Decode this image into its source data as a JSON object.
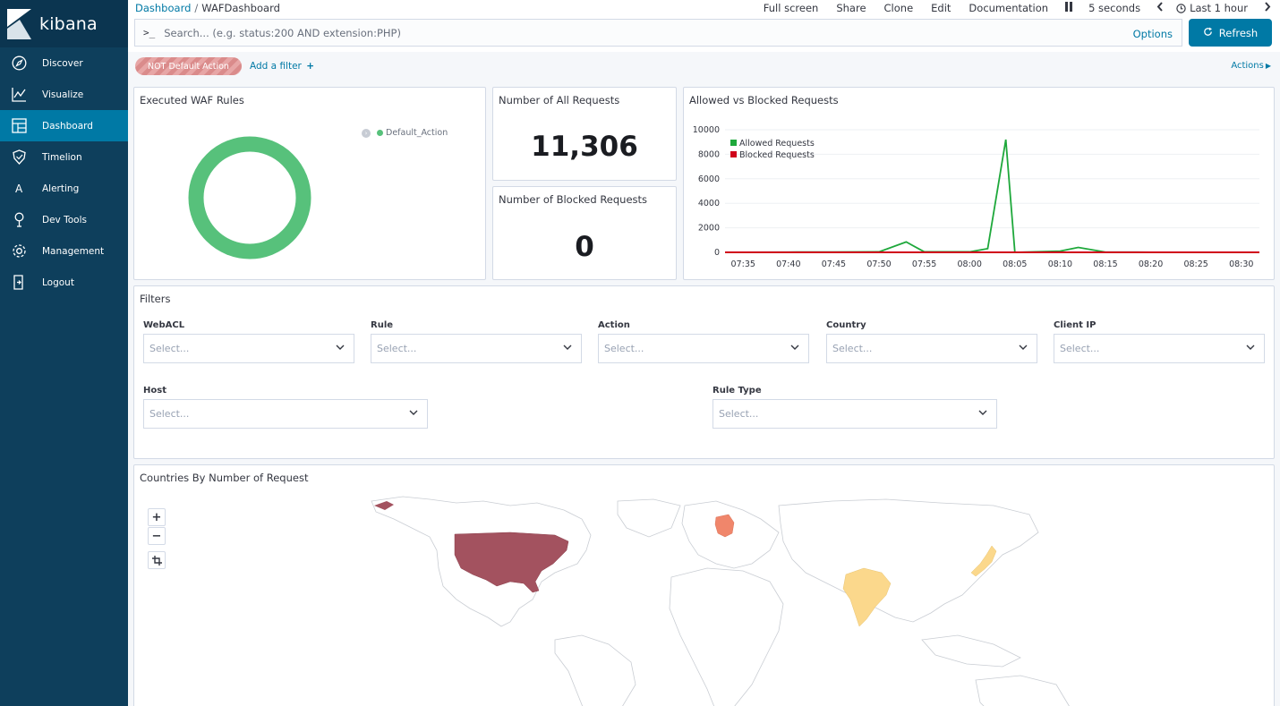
{
  "app": {
    "name": "kibana"
  },
  "nav": [
    {
      "label": "Discover",
      "icon": "compass-icon"
    },
    {
      "label": "Visualize",
      "icon": "chart-icon"
    },
    {
      "label": "Dashboard",
      "icon": "dashboard-icon"
    },
    {
      "label": "Timelion",
      "icon": "shield-icon"
    },
    {
      "label": "Alerting",
      "icon": "alert-icon"
    },
    {
      "label": "Dev Tools",
      "icon": "wrench-icon"
    },
    {
      "label": "Management",
      "icon": "gear-icon"
    },
    {
      "label": "Logout",
      "icon": "logout-icon"
    }
  ],
  "active_nav": "Dashboard",
  "breadcrumb": {
    "root": "Dashboard",
    "separator": "/",
    "current": "WAFDashboard"
  },
  "top_menu": {
    "full_screen": "Full screen",
    "share": "Share",
    "clone": "Clone",
    "edit": "Edit",
    "documentation": "Documentation",
    "refresh_interval": "5 seconds",
    "time_range": "Last 1 hour"
  },
  "search": {
    "prompt": ">_",
    "placeholder": "Search... (e.g. status:200 AND extension:PHP)",
    "options": "Options",
    "refresh": "Refresh"
  },
  "filters_bar": {
    "pill": "NOT Default Action",
    "add_filter": "Add a filter",
    "actions": "Actions"
  },
  "panels": {
    "executed_rules": {
      "title": "Executed WAF Rules",
      "legend": "Default_Action"
    },
    "all_requests": {
      "title": "Number of All Requests",
      "value": "11,306"
    },
    "blocked_requests": {
      "title": "Number of Blocked Requests",
      "value": "0"
    },
    "allowed_vs_blocked": {
      "title": "Allowed vs Blocked Requests"
    },
    "filters": {
      "title": "Filters",
      "fields": [
        {
          "label": "WebACL",
          "placeholder": "Select..."
        },
        {
          "label": "Rule",
          "placeholder": "Select..."
        },
        {
          "label": "Action",
          "placeholder": "Select..."
        },
        {
          "label": "Country",
          "placeholder": "Select..."
        },
        {
          "label": "Client IP",
          "placeholder": "Select..."
        },
        {
          "label": "Host",
          "placeholder": "Select..."
        },
        {
          "label": "Rule Type",
          "placeholder": "Select..."
        }
      ]
    },
    "map": {
      "title": "Countries By Number of Request",
      "zoom_in": "+",
      "zoom_out": "−"
    }
  },
  "colors": {
    "sidebar": "#0e3f5c",
    "accent": "#0079a5",
    "allowed": "#1ea83b",
    "blocked": "#d0021b",
    "donut": "#57c17b"
  },
  "chart_data": [
    {
      "type": "pie",
      "title": "Executed WAF Rules",
      "slices": [
        {
          "label": "Default_Action",
          "value": 100
        }
      ]
    },
    {
      "type": "line",
      "title": "Allowed vs Blocked Requests",
      "x": [
        "07:33",
        "07:35",
        "07:40",
        "07:45",
        "07:50",
        "07:53",
        "07:55",
        "08:00",
        "08:02",
        "08:04",
        "08:05",
        "08:10",
        "08:12",
        "08:15",
        "08:20",
        "08:25",
        "08:30",
        "08:32"
      ],
      "x_ticks": [
        "07:35",
        "07:40",
        "07:45",
        "07:50",
        "07:55",
        "08:00",
        "08:05",
        "08:10",
        "08:15",
        "08:20",
        "08:25",
        "08:30"
      ],
      "series": [
        {
          "name": "Allowed Requests",
          "values": [
            0,
            10,
            20,
            30,
            40,
            850,
            40,
            40,
            300,
            9200,
            0,
            100,
            400,
            20,
            10,
            5,
            5,
            0
          ]
        },
        {
          "name": "Blocked Requests",
          "values": [
            0,
            0,
            0,
            0,
            0,
            0,
            0,
            0,
            0,
            0,
            0,
            0,
            0,
            0,
            0,
            0,
            0,
            0
          ]
        }
      ],
      "ylim": [
        0,
        10000
      ],
      "y_ticks": [
        0,
        2000,
        4000,
        6000,
        8000,
        10000
      ],
      "legend": "top-left",
      "grid": true
    }
  ],
  "map_regions": [
    {
      "name": "United States",
      "intensity": "high",
      "color": "#a3525f"
    },
    {
      "name": "Germany",
      "intensity": "medium",
      "color": "#f0866b"
    },
    {
      "name": "India",
      "intensity": "low",
      "color": "#fbd88c"
    },
    {
      "name": "Japan",
      "intensity": "low",
      "color": "#fbd88c"
    }
  ]
}
